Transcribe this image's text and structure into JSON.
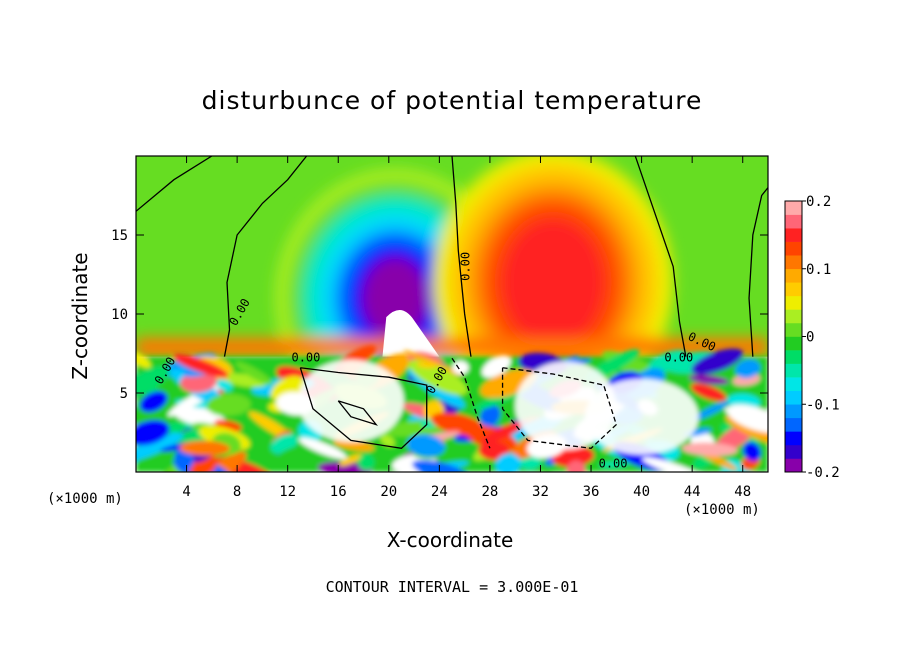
{
  "chart_data": {
    "type": "heatmap",
    "title": "disturbunce of potential temperature",
    "xlabel": "X-coordinate",
    "ylabel": "Z-coordinate",
    "x_unit_label": "(×1000 m)",
    "footer": "CONTOUR INTERVAL = 3.000E-01",
    "xlim": [
      0,
      50
    ],
    "ylim": [
      0,
      20
    ],
    "x_ticks": [
      4,
      8,
      12,
      16,
      20,
      24,
      28,
      32,
      36,
      40,
      44,
      48
    ],
    "y_ticks": [
      5,
      10,
      15
    ],
    "colorbar": {
      "range": [
        -0.2,
        0.2
      ],
      "tick_labels": [
        "0.2",
        "0.1",
        "0",
        "-0.1",
        "-0.2"
      ],
      "tick_values": [
        0.2,
        0.1,
        0,
        -0.1,
        -0.2
      ],
      "colors": [
        "#8800aa",
        "#3300cc",
        "#0000ff",
        "#0066ff",
        "#0099ff",
        "#00ccff",
        "#00e6e6",
        "#00e6aa",
        "#00dd66",
        "#22cc22",
        "#66dd22",
        "#aaee22",
        "#eeee00",
        "#ffcc00",
        "#ffaa00",
        "#ff7700",
        "#ff4400",
        "#ff2222",
        "#ff6677",
        "#ffaaaa"
      ]
    },
    "contour_labels": [
      "0.00",
      "0.00",
      "0.00",
      "0.00",
      "0.00",
      "0.00",
      "0.00",
      "0.00"
    ],
    "fields": {
      "upper_cold_anomaly": {
        "x": 20.5,
        "z": 11,
        "value": -0.2
      },
      "upper_warm_anomaly": {
        "x": 33,
        "z": 12,
        "value": 0.15
      },
      "inversion_level_z": 7.3
    }
  }
}
